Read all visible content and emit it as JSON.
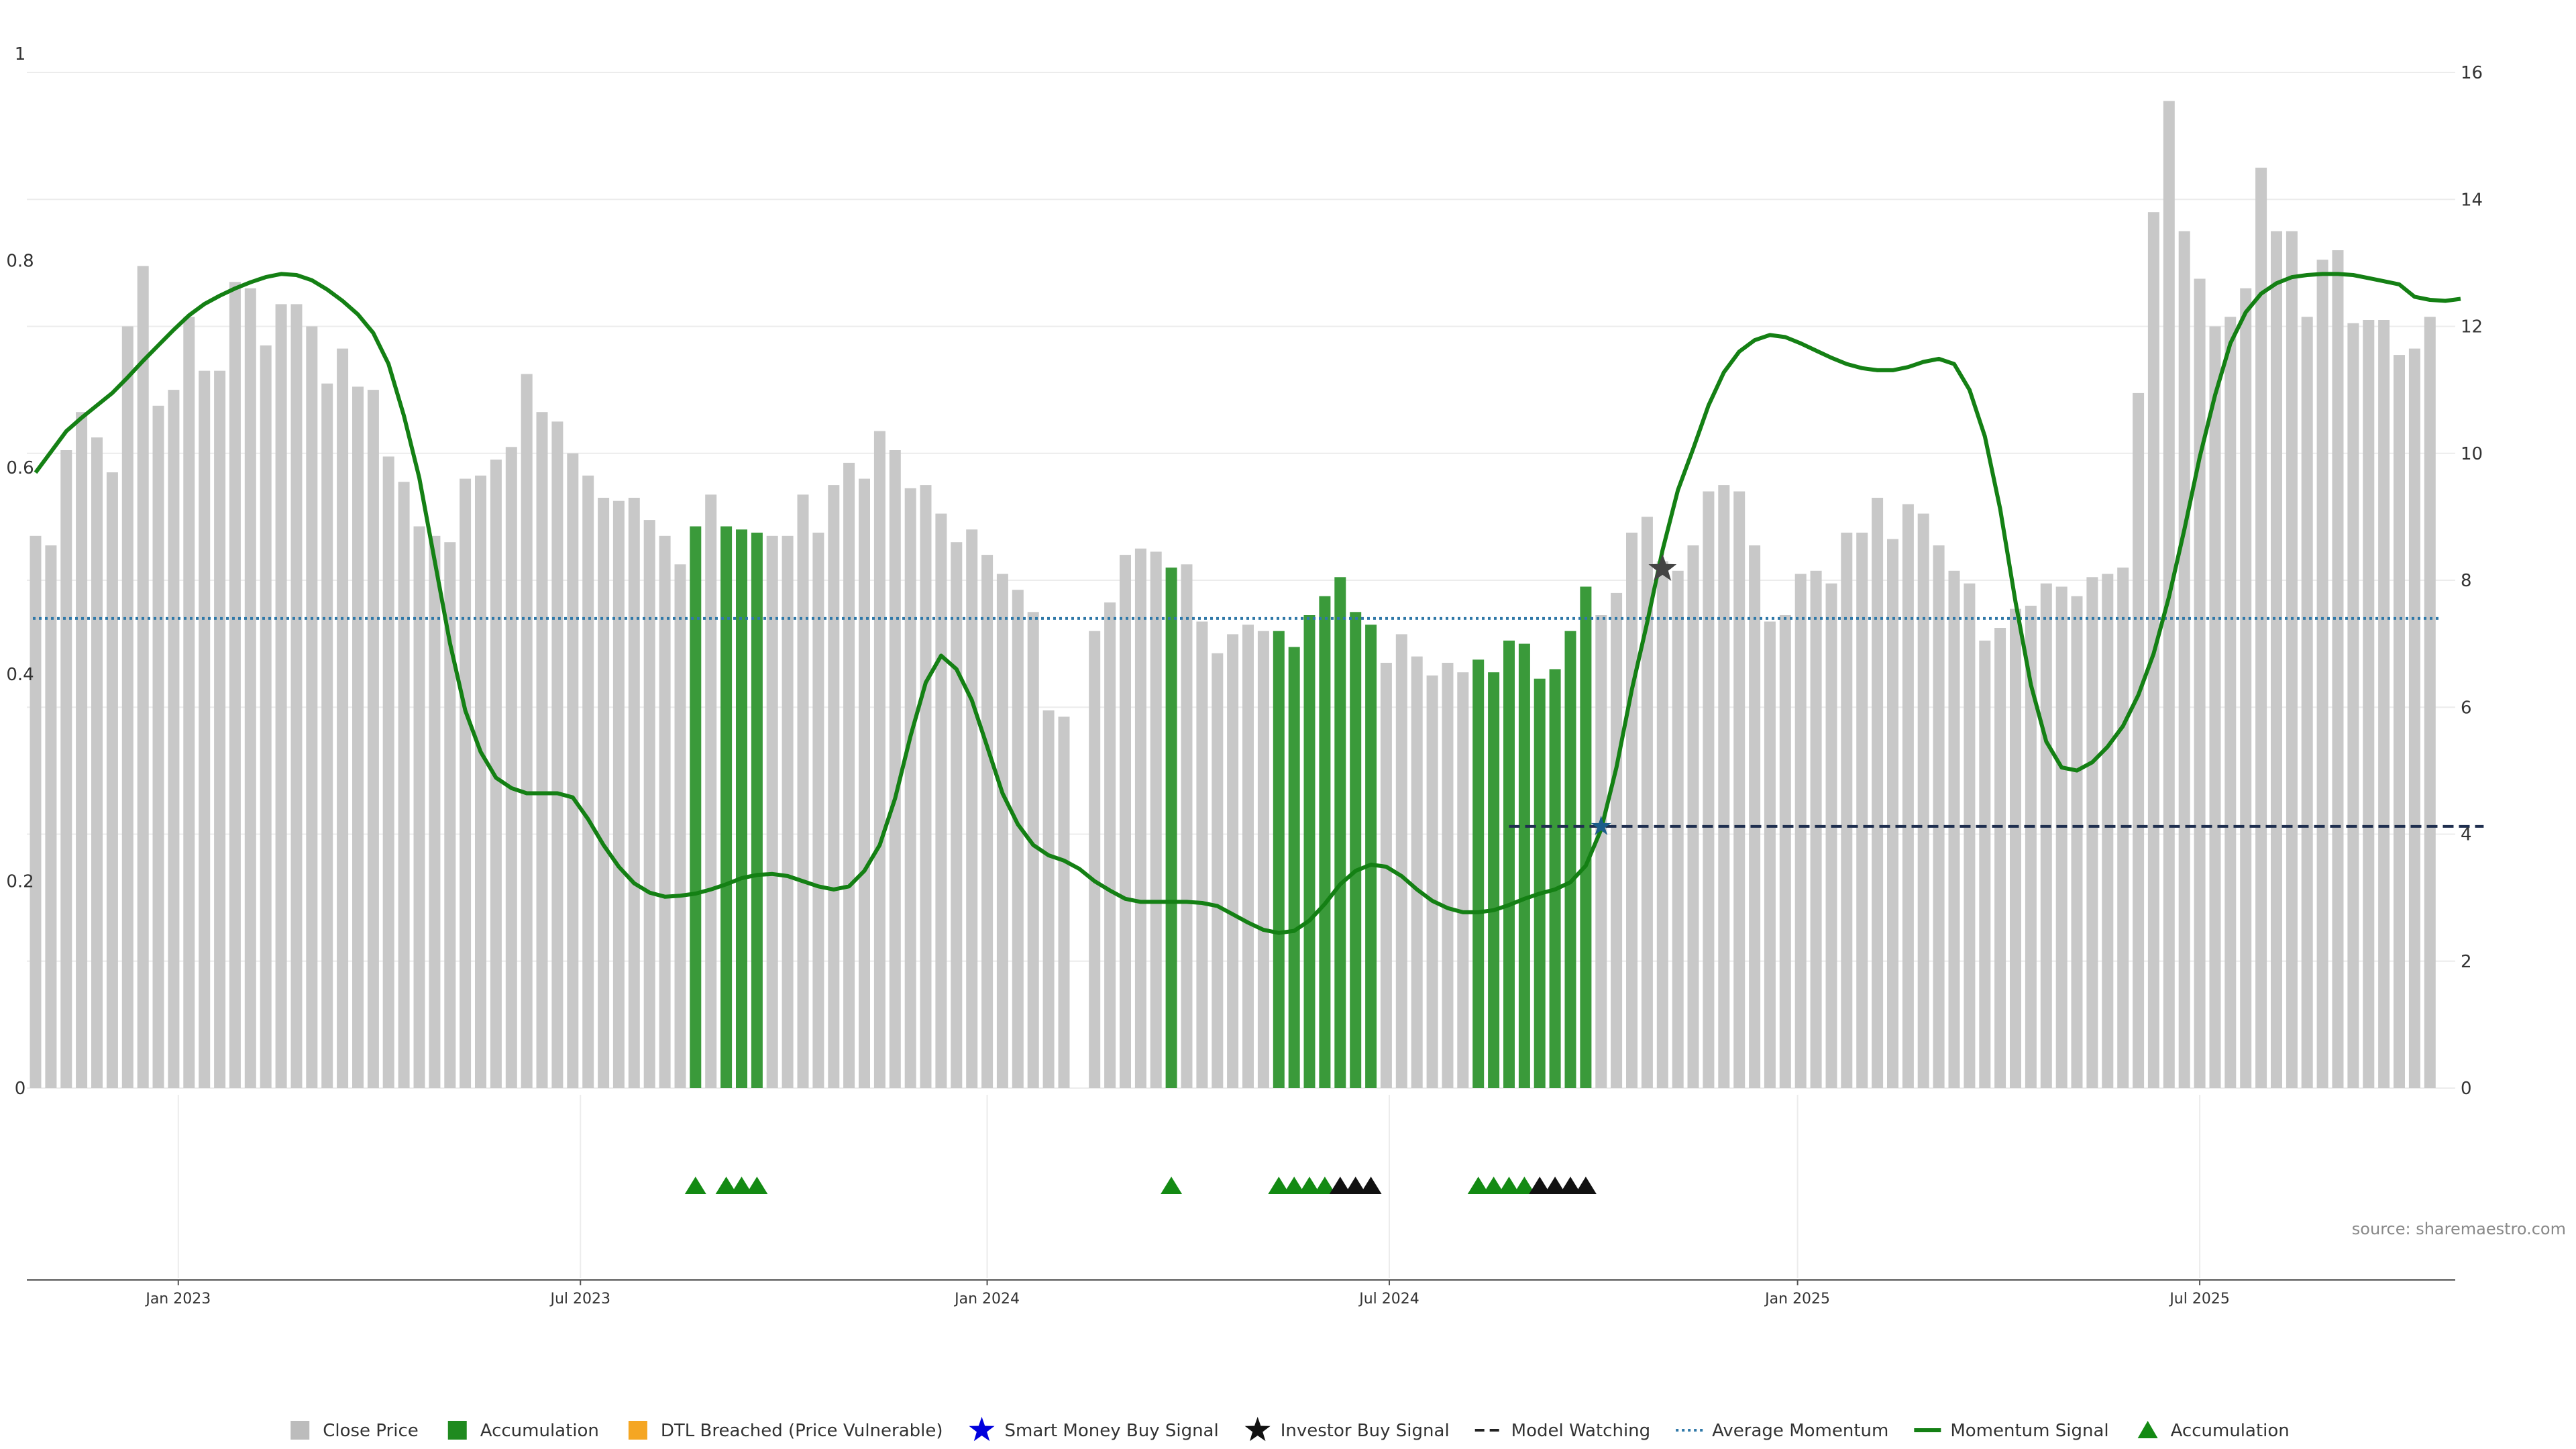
{
  "chart_data": {
    "type": "bar",
    "source_text": "source: sharemaestro.com",
    "left_axis": {
      "ylim": [
        0,
        1
      ],
      "ticks": [
        "0",
        "0.2",
        "0.4",
        "0.6",
        "0.8",
        "1"
      ],
      "tick_values": [
        0,
        0.2,
        0.4,
        0.6,
        0.8,
        1
      ]
    },
    "right_axis": {
      "ylim": [
        0,
        16
      ],
      "ticks": [
        "0",
        "2",
        "4",
        "6",
        "8",
        "10",
        "12",
        "14",
        "16"
      ],
      "tick_values": [
        0,
        2,
        4,
        6,
        8,
        10,
        12,
        14,
        16
      ]
    },
    "x_ticks": [
      "Jan 2023",
      "Jul 2023",
      "Jan 2024",
      "Jul 2024",
      "Jan 2025",
      "Jul 2025"
    ],
    "x_tick_weeks": [
      9.3,
      35.5,
      62.0,
      88.2,
      114.8,
      141.0
    ],
    "colors": {
      "close": "#c8c8c8",
      "accumulation": "#3a9a3a",
      "momentum": "#148014",
      "average": "#2f78a8",
      "watch": "#1f2f4f",
      "dtl": "#f5a623",
      "smart": "#0000dd",
      "investor": "#111111",
      "tri_green": "#138a13",
      "tri_black": "#111111"
    },
    "series": [
      {
        "name": "Close Price",
        "type": "bar",
        "axis": "right",
        "values": [
          8.7,
          8.55,
          10.05,
          10.65,
          10.25,
          9.7,
          12.0,
          12.95,
          10.75,
          11.0,
          12.15,
          11.3,
          11.3,
          12.7,
          12.6,
          11.7,
          12.35,
          12.35,
          12.0,
          11.1,
          11.65,
          11.05,
          11.0,
          9.95,
          9.55,
          8.85,
          8.7,
          8.6,
          9.6,
          9.65,
          9.9,
          10.1,
          11.25,
          10.65,
          10.5,
          10.0,
          9.65,
          9.3,
          9.25,
          9.3,
          8.95,
          8.7,
          8.25,
          8.85,
          9.35,
          8.85,
          8.8,
          8.75,
          8.7,
          8.7,
          9.35,
          8.75,
          9.5,
          9.85,
          9.6,
          10.35,
          10.05,
          9.45,
          9.5,
          9.05,
          8.6,
          8.8,
          8.4,
          8.1,
          7.85,
          7.5,
          5.95,
          5.85,
          0,
          7.2,
          7.65,
          8.4,
          8.5,
          8.45,
          8.2,
          8.25,
          7.35,
          6.85,
          7.15,
          7.3,
          7.2,
          7.2,
          6.95,
          7.45,
          7.75,
          8.05,
          7.5,
          7.3,
          6.7,
          7.15,
          6.8,
          6.5,
          6.7,
          6.55,
          6.75,
          6.55,
          7.05,
          7.0,
          6.45,
          6.6,
          7.2,
          7.9,
          7.45,
          7.8,
          8.75,
          9.0,
          8.3,
          8.15,
          8.55,
          9.4,
          9.5,
          9.4,
          8.55,
          7.35,
          7.45,
          8.1,
          8.15,
          7.95,
          8.75,
          8.75,
          9.3,
          8.65,
          9.2,
          9.05,
          8.55,
          8.15,
          7.95,
          7.05,
          7.25,
          7.55,
          7.6,
          7.95,
          7.9,
          7.75,
          8.05,
          8.1,
          8.2,
          10.95,
          13.8,
          15.55,
          13.5,
          12.75,
          12.0,
          12.15,
          12.6,
          14.5,
          13.5,
          13.5,
          12.15,
          13.05,
          13.2,
          12.05,
          12.1,
          12.1,
          11.55,
          11.65,
          12.15
        ]
      },
      {
        "name": "Accumulation",
        "type": "bar-highlight",
        "weeks": [
          43,
          45,
          46,
          47,
          74,
          81,
          82,
          83,
          84,
          85,
          86,
          87,
          94,
          95,
          96,
          97,
          98,
          99,
          100,
          101
        ]
      },
      {
        "name": "Momentum Signal",
        "type": "line",
        "axis": "left",
        "values": [
          0.595,
          0.615,
          0.635,
          0.648,
          0.66,
          0.672,
          0.687,
          0.703,
          0.718,
          0.733,
          0.747,
          0.758,
          0.766,
          0.773,
          0.779,
          0.784,
          0.787,
          0.786,
          0.781,
          0.772,
          0.761,
          0.748,
          0.73,
          0.7,
          0.65,
          0.59,
          0.51,
          0.43,
          0.365,
          0.325,
          0.3,
          0.29,
          0.285,
          0.285,
          0.285,
          0.281,
          0.26,
          0.235,
          0.214,
          0.198,
          0.189,
          0.185,
          0.186,
          0.188,
          0.192,
          0.197,
          0.203,
          0.206,
          0.207,
          0.205,
          0.2,
          0.195,
          0.192,
          0.195,
          0.21,
          0.235,
          0.28,
          0.34,
          0.392,
          0.418,
          0.405,
          0.375,
          0.33,
          0.285,
          0.255,
          0.235,
          0.225,
          0.22,
          0.212,
          0.2,
          0.191,
          0.183,
          0.18,
          0.18,
          0.18,
          0.18,
          0.179,
          0.176,
          0.168,
          0.16,
          0.153,
          0.15,
          0.152,
          0.162,
          0.178,
          0.197,
          0.21,
          0.216,
          0.214,
          0.205,
          0.192,
          0.181,
          0.174,
          0.17,
          0.17,
          0.172,
          0.177,
          0.183,
          0.188,
          0.192,
          0.199,
          0.215,
          0.25,
          0.31,
          0.385,
          0.45,
          0.52,
          0.578,
          0.618,
          0.66,
          0.692,
          0.712,
          0.723,
          0.728,
          0.726,
          0.72,
          0.713,
          0.706,
          0.7,
          0.696,
          0.694,
          0.694,
          0.697,
          0.702,
          0.705,
          0.7,
          0.675,
          0.63,
          0.56,
          0.47,
          0.39,
          0.335,
          0.31,
          0.307,
          0.315,
          0.33,
          0.35,
          0.38,
          0.42,
          0.475,
          0.54,
          0.61,
          0.67,
          0.72,
          0.75,
          0.768,
          0.778,
          0.784,
          0.786,
          0.787,
          0.787,
          0.786,
          0.783,
          0.78,
          0.777,
          0.765,
          0.762,
          0.761,
          0.763
        ]
      },
      {
        "name": "Average Momentum",
        "type": "hline",
        "axis": "left",
        "value": 0.454
      },
      {
        "name": "Model Watching",
        "type": "dashed-line",
        "axis": "left",
        "value": 0.253,
        "from_week": 96,
        "to_week": 159.5
      },
      {
        "name": "Smart Money Buy Signal",
        "type": "marker",
        "points": [
          {
            "week": 102,
            "value": 0.253
          }
        ]
      },
      {
        "name": "Investor Buy Signal",
        "type": "marker",
        "points": [
          {
            "week": 106,
            "value": 0.502
          }
        ]
      },
      {
        "name": "Accumulation",
        "type": "triangle-markers",
        "green_weeks": [
          43,
          45,
          46,
          47,
          74,
          81,
          82,
          83,
          84,
          94,
          95,
          96,
          97
        ],
        "black_weeks": [
          85,
          86,
          87,
          98,
          99,
          100,
          101
        ]
      }
    ],
    "legend": {
      "placement": "bottom-center",
      "items": [
        {
          "label": "Close Price",
          "symbol": "square",
          "color": "#bcbcbc"
        },
        {
          "label": "Accumulation",
          "symbol": "square",
          "color": "#1f8a1f"
        },
        {
          "label": "DTL Breached (Price Vulnerable)",
          "symbol": "square",
          "color": "#f5a623"
        },
        {
          "label": "Smart Money Buy Signal",
          "symbol": "star",
          "color": "#0000dd"
        },
        {
          "label": "Investor Buy Signal",
          "symbol": "star",
          "color": "#111111"
        },
        {
          "label": "Model Watching",
          "symbol": "dash",
          "color": "#222222"
        },
        {
          "label": "Average Momentum",
          "symbol": "dotted",
          "color": "#2f78a8"
        },
        {
          "label": "Momentum Signal",
          "symbol": "line",
          "color": "#148014"
        },
        {
          "label": "Accumulation",
          "symbol": "triangle",
          "color": "#138a13"
        }
      ]
    }
  }
}
